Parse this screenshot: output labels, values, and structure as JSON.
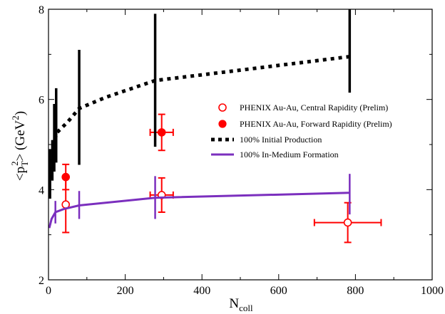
{
  "chart_data": {
    "type": "scatter",
    "xlabel_main": "N",
    "xlabel_sub": "coll",
    "ylabel_parts": {
      "open": "<p",
      "sub": "T",
      "sup": "2",
      "close": "> (GeV",
      "unit_sup": "2",
      "end": ")"
    },
    "xlim": [
      0,
      1000
    ],
    "ylim": [
      2,
      8
    ],
    "x_ticks": [
      0,
      200,
      400,
      600,
      800,
      1000
    ],
    "x_tick_labels": [
      "0",
      "200",
      "400",
      "600",
      "800",
      "1000"
    ],
    "y_ticks": [
      2,
      4,
      6,
      8
    ],
    "y_tick_labels": [
      "2",
      "4",
      "6",
      "8"
    ],
    "y_minor_ticks": [
      3,
      5,
      7
    ],
    "grid": false,
    "legend_position": "right-middle",
    "series": [
      {
        "name": "PHENIX Au-Au, Central Rapidity (Prelim)",
        "kind": "open-circle-errorbar",
        "color": "#ff0000",
        "points": [
          {
            "x": 45,
            "y": 3.67,
            "xerr": 4,
            "yerr": 0.62
          },
          {
            "x": 295,
            "y": 3.88,
            "xerr": 30,
            "yerr": 0.38
          },
          {
            "x": 780,
            "y": 3.27,
            "xerr": 87,
            "yerr": 0.44
          }
        ]
      },
      {
        "name": "PHENIX Au-Au, Forward Rapidity (Prelim)",
        "kind": "filled-circle-errorbar",
        "color": "#ff0000",
        "points": [
          {
            "x": 45,
            "y": 4.28,
            "xerr": 4,
            "yerr": 0.28
          },
          {
            "x": 295,
            "y": 5.27,
            "xerr": 30,
            "yerr": 0.4
          }
        ]
      },
      {
        "name": "100% Initial Production",
        "kind": "dotted-line-band",
        "color": "#000000",
        "points": [
          {
            "x": 4,
            "y": 4.25,
            "ylo": 3.8,
            "yhi": 4.9
          },
          {
            "x": 10,
            "y": 4.6,
            "ylo": 4.2,
            "yhi": 5.1
          },
          {
            "x": 15,
            "y": 4.95,
            "ylo": 4.4,
            "yhi": 5.9
          },
          {
            "x": 20,
            "y": 5.25,
            "ylo": 4.6,
            "yhi": 6.25
          },
          {
            "x": 50,
            "y": 5.5
          },
          {
            "x": 80,
            "y": 5.8,
            "ylo": 4.55,
            "yhi": 7.1
          },
          {
            "x": 150,
            "y": 6.05
          },
          {
            "x": 278,
            "y": 6.42,
            "ylo": 4.95,
            "yhi": 7.9
          },
          {
            "x": 500,
            "y": 6.65
          },
          {
            "x": 785,
            "y": 6.95,
            "ylo": 6.15,
            "yhi": 8.0
          }
        ]
      },
      {
        "name": "100% In-Medium Formation",
        "kind": "solid-line-band",
        "color": "#7b2fbe",
        "points": [
          {
            "x": 2,
            "y": 3.15
          },
          {
            "x": 8,
            "y": 3.35
          },
          {
            "x": 18,
            "y": 3.5,
            "ylo": 3.25,
            "yhi": 3.75
          },
          {
            "x": 40,
            "y": 3.57
          },
          {
            "x": 80,
            "y": 3.65,
            "ylo": 3.35,
            "yhi": 3.97
          },
          {
            "x": 278,
            "y": 3.82,
            "ylo": 3.35,
            "yhi": 4.3
          },
          {
            "x": 785,
            "y": 3.93,
            "ylo": 3.45,
            "yhi": 4.35
          }
        ]
      }
    ]
  }
}
